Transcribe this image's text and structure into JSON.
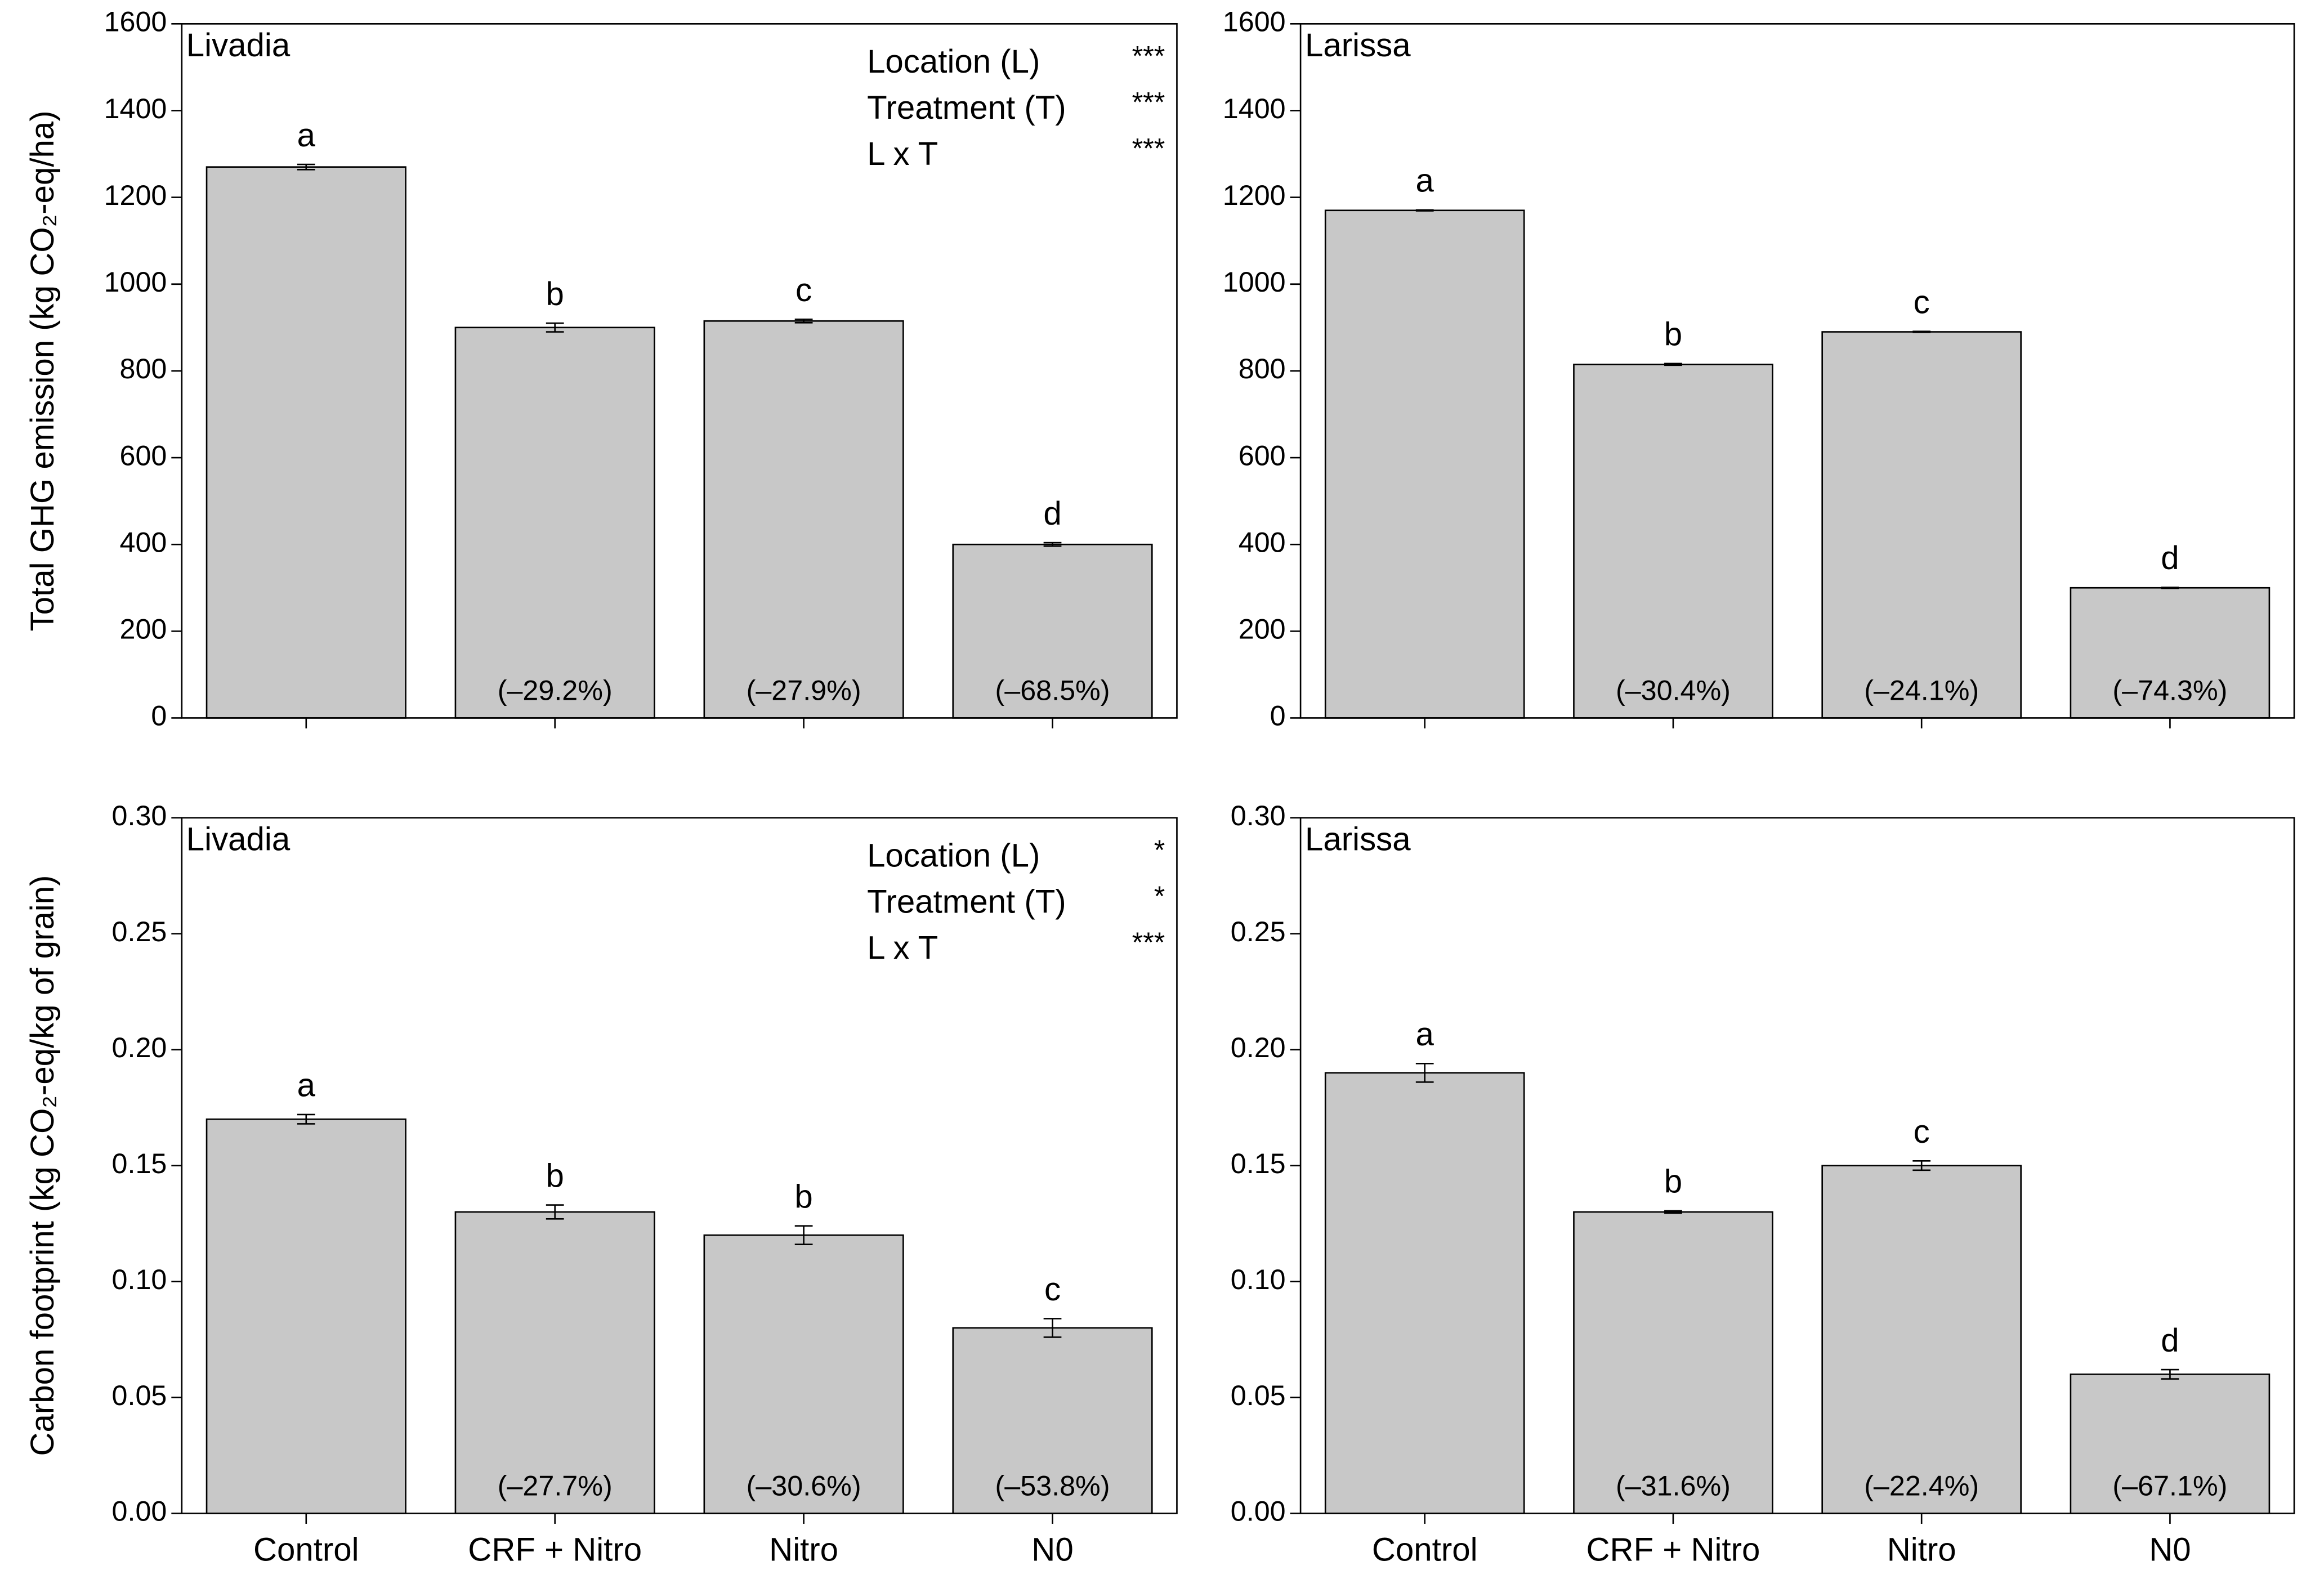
{
  "chart_data": [
    {
      "type": "bar",
      "title": "Livadia",
      "ylabel": "Total GHG emission (kg CO₂-eq/ha)",
      "categories": [
        null,
        null,
        null,
        null
      ],
      "values": [
        1270,
        900,
        915,
        400
      ],
      "errors": [
        6,
        10,
        4,
        4
      ],
      "letters": [
        "a",
        "b",
        "c",
        "d"
      ],
      "pct_labels": [
        null,
        "(–29.2%)",
        "(–27.9%)",
        "(–68.5%)"
      ],
      "stats": [
        {
          "label": "Location (L)",
          "sig": "***"
        },
        {
          "label": "Treatment (T)",
          "sig": "***"
        },
        {
          "label": "L x T",
          "sig": "***"
        }
      ],
      "color": "#c8c8c8",
      "ylim": [
        0,
        1600
      ],
      "yticks": [
        0,
        200,
        400,
        600,
        800,
        1000,
        1200,
        1400,
        1600
      ]
    },
    {
      "type": "bar",
      "title": "Larissa",
      "categories": [
        null,
        null,
        null,
        null
      ],
      "values": [
        1170,
        815,
        890,
        300
      ],
      "errors": [
        1,
        2,
        1,
        1
      ],
      "letters": [
        "a",
        "b",
        "c",
        "d"
      ],
      "pct_labels": [
        null,
        "(–30.4%)",
        "(–24.1%)",
        "(–74.3%)"
      ],
      "color": "#c8c8c8",
      "ylim": [
        0,
        1600
      ],
      "yticks": [
        0,
        200,
        400,
        600,
        800,
        1000,
        1200,
        1400,
        1600
      ]
    },
    {
      "type": "bar",
      "title": "Livadia",
      "ylabel": "Carbon footprint (kg CO₂-eq/kg of grain)",
      "categories": [
        "Control",
        "CRF + Nitro",
        "Nitro",
        "N0"
      ],
      "values": [
        0.17,
        0.13,
        0.12,
        0.08
      ],
      "errors": [
        0.002,
        0.003,
        0.004,
        0.004
      ],
      "letters": [
        "a",
        "b",
        "b",
        "c"
      ],
      "pct_labels": [
        null,
        "(–27.7%)",
        "(–30.6%)",
        "(–53.8%)"
      ],
      "stats": [
        {
          "label": "Location (L)",
          "sig": "*"
        },
        {
          "label": "Treatment (T)",
          "sig": "*"
        },
        {
          "label": "L x T",
          "sig": "***"
        }
      ],
      "color": "#c8c8c8",
      "ylim": [
        0,
        0.3
      ],
      "yticks": [
        {
          "value": 0,
          "label": "0.00"
        },
        0.05,
        {
          "value": 0.1,
          "label": "0.10"
        },
        0.15,
        {
          "value": 0.2,
          "label": "0.20"
        },
        0.25,
        {
          "value": 0.3,
          "label": "0.30"
        }
      ]
    },
    {
      "type": "bar",
      "title": "Larissa",
      "categories": [
        "Control",
        "CRF + Nitro",
        "Nitro",
        "N0"
      ],
      "values": [
        0.19,
        0.13,
        0.15,
        0.06
      ],
      "errors": [
        0.004,
        0.0005,
        0.002,
        0.002
      ],
      "letters": [
        "a",
        "b",
        "c",
        "d"
      ],
      "pct_labels": [
        null,
        "(–31.6%)",
        "(–22.4%)",
        "(–67.1%)"
      ],
      "color": "#c8c8c8",
      "ylim": [
        0,
        0.3
      ],
      "yticks": [
        {
          "value": 0,
          "label": "0.00"
        },
        0.05,
        {
          "value": 0.1,
          "label": "0.10"
        },
        0.15,
        {
          "value": 0.2,
          "label": "0.20"
        },
        0.25,
        {
          "value": 0.3,
          "label": "0.30"
        }
      ]
    }
  ]
}
